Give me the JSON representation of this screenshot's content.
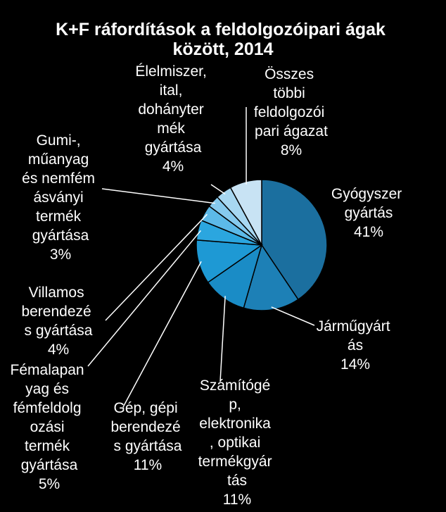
{
  "chart_data": {
    "type": "pie",
    "title": "K+F ráfordítások a feldolgozóipari ágak\nközött, 2014",
    "categories": [
      "Gyógyszer\ngyártás",
      "Járműgyárt\nás",
      "Számítógé\np,\nelektronika\n, optikai\ntermékgyár\ntás",
      "Gép, gépi\nberendezé\ns gyártása",
      "Fémalapan\nyag és\nfémfeldolg\nozási\ntermék\ngyártása",
      "Villamos\nberendezé\ns gyártása",
      "Gumi-,\nműanyag\nés nemfém\násványi\ntermék\ngyártása",
      "Élelmiszer,\nital,\ndohányter\nmék\ngyártása",
      "Összes\ntöbbi\nfeldolgozói\npari ágazat"
    ],
    "values": [
      41,
      14,
      11,
      11,
      5,
      4,
      3,
      4,
      8
    ],
    "value_labels": [
      "41%",
      "14%",
      "11%",
      "11%",
      "5%",
      "4%",
      "3%",
      "4%",
      "8%"
    ],
    "colors": [
      "#1b6f9f",
      "#1d80b6",
      "#1a8cc6",
      "#1e99d4",
      "#2ba6df",
      "#5cb9e8",
      "#86caee",
      "#a7d7f1",
      "#c8e3f4"
    ]
  }
}
